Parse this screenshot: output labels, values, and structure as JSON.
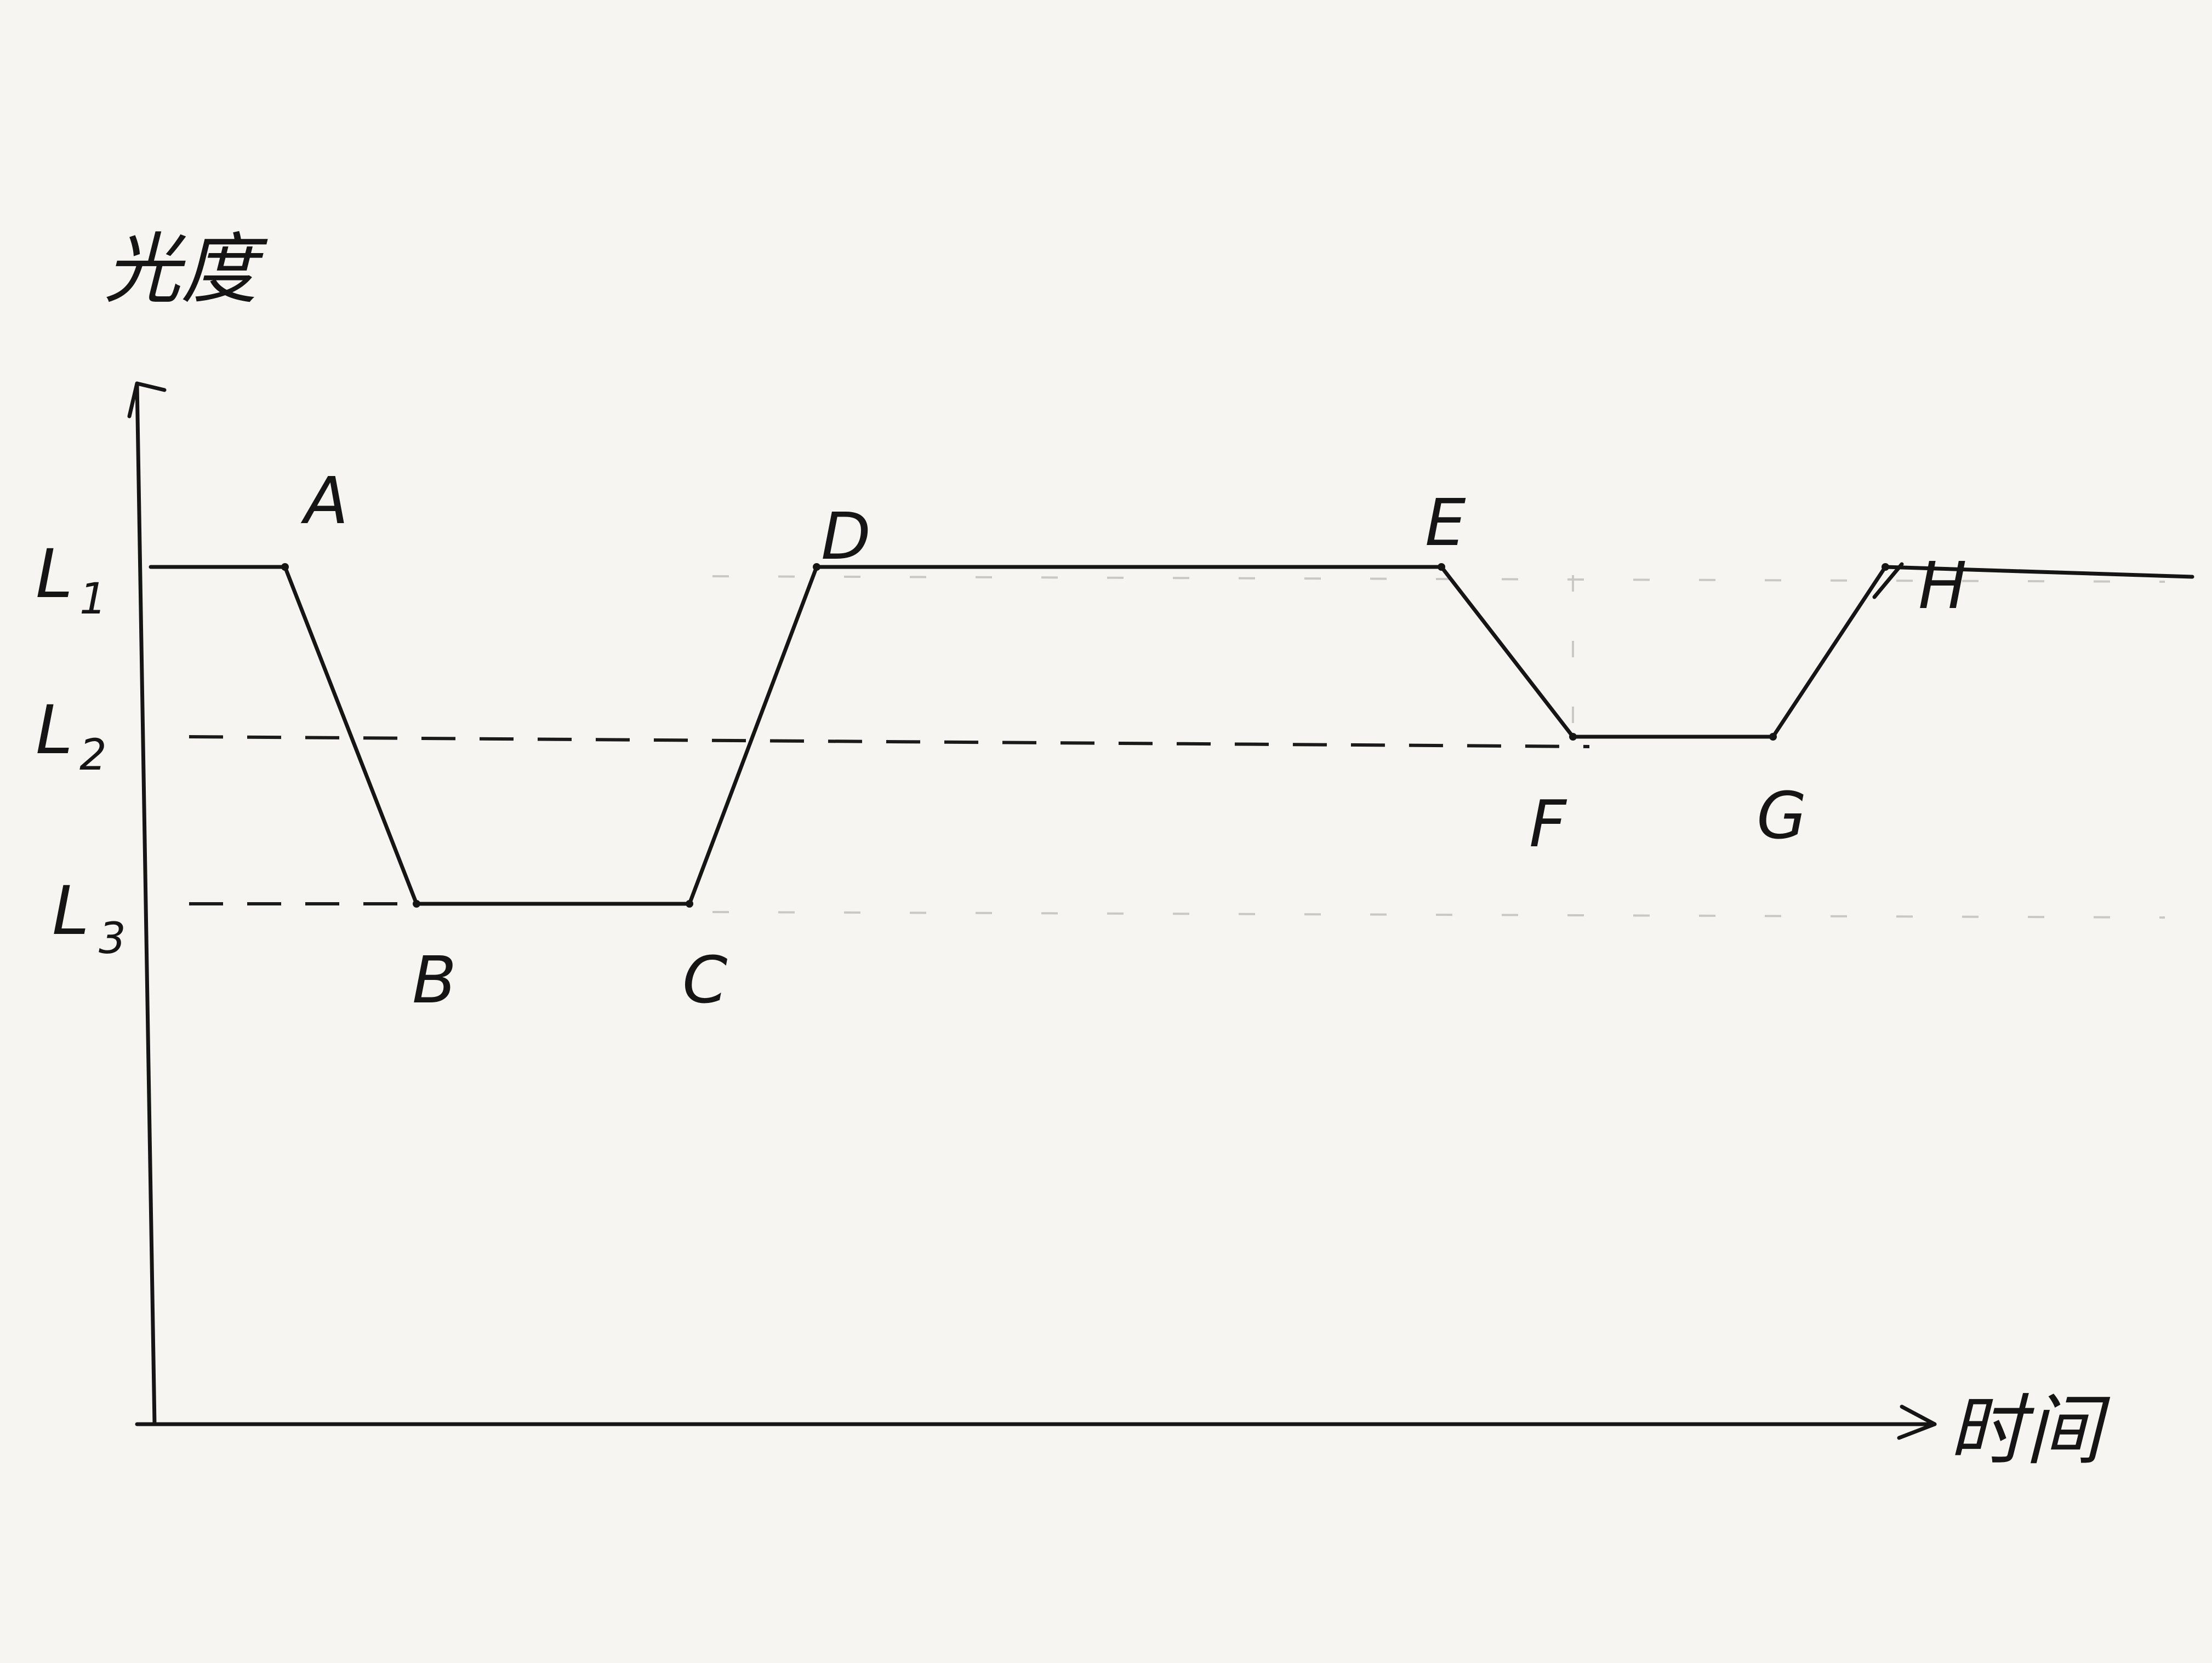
{
  "chart_data": {
    "type": "line",
    "y_axis_label": "光度",
    "x_axis_label": "时间",
    "y_levels": [
      {
        "name": "L1",
        "letter": "L",
        "subscript": "1"
      },
      {
        "name": "L2",
        "letter": "L",
        "subscript": "2"
      },
      {
        "name": "L3",
        "letter": "L",
        "subscript": "3"
      }
    ],
    "series": [
      {
        "points": [
          {
            "label": "A",
            "level": "L1"
          },
          {
            "label": "B",
            "level": "L3"
          },
          {
            "label": "C",
            "level": "L3"
          },
          {
            "label": "D",
            "level": "L1"
          },
          {
            "label": "E",
            "level": "L1"
          },
          {
            "label": "F",
            "level": "L2"
          },
          {
            "label": "G",
            "level": "L2"
          },
          {
            "label": "H",
            "level": "L1"
          }
        ]
      }
    ],
    "dashed_guides": [
      "L2",
      "L3"
    ],
    "grid": false,
    "legend": false
  }
}
